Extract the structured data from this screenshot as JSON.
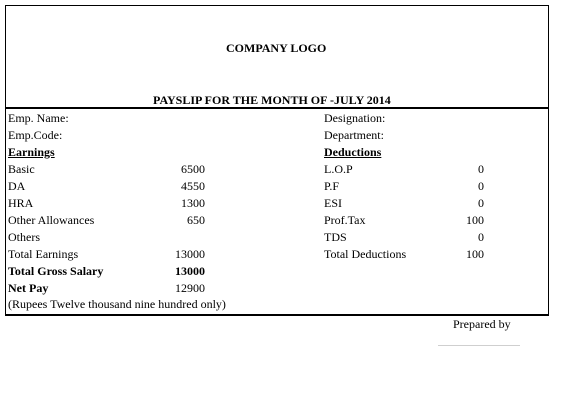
{
  "header": {
    "logo_text": "COMPANY LOGO",
    "title": "PAYSLIP FOR THE MONTH OF -JULY 2014"
  },
  "employee": {
    "name_label": "Emp. Name:",
    "code_label": "Emp.Code:",
    "designation_label": "Designation:",
    "department_label": "Department:"
  },
  "earnings": {
    "heading": "Earnings",
    "items": [
      {
        "label": "Basic",
        "value": "6500"
      },
      {
        "label": "DA",
        "value": "4550"
      },
      {
        "label": "HRA",
        "value": "1300"
      },
      {
        "label": "Other Allowances",
        "value": "650"
      },
      {
        "label": "Others",
        "value": ""
      }
    ],
    "total_label": "Total Earnings",
    "total_value": "13000",
    "gross_label": "Total Gross Salary",
    "gross_value": "13000",
    "netpay_label": "Net Pay",
    "netpay_value": "12900",
    "in_words": "(Rupees Twelve thousand nine hundred only)"
  },
  "deductions": {
    "heading": "Deductions",
    "items": [
      {
        "label": "L.O.P",
        "value": "0"
      },
      {
        "label": "P.F",
        "value": "0"
      },
      {
        "label": "ESI",
        "value": "0"
      },
      {
        "label": "Prof.Tax",
        "value": "100"
      },
      {
        "label": "TDS",
        "value": "0"
      }
    ],
    "total_label": "Total Deductions",
    "total_value": "100"
  },
  "footer": {
    "prepared_by": "Prepared by"
  }
}
